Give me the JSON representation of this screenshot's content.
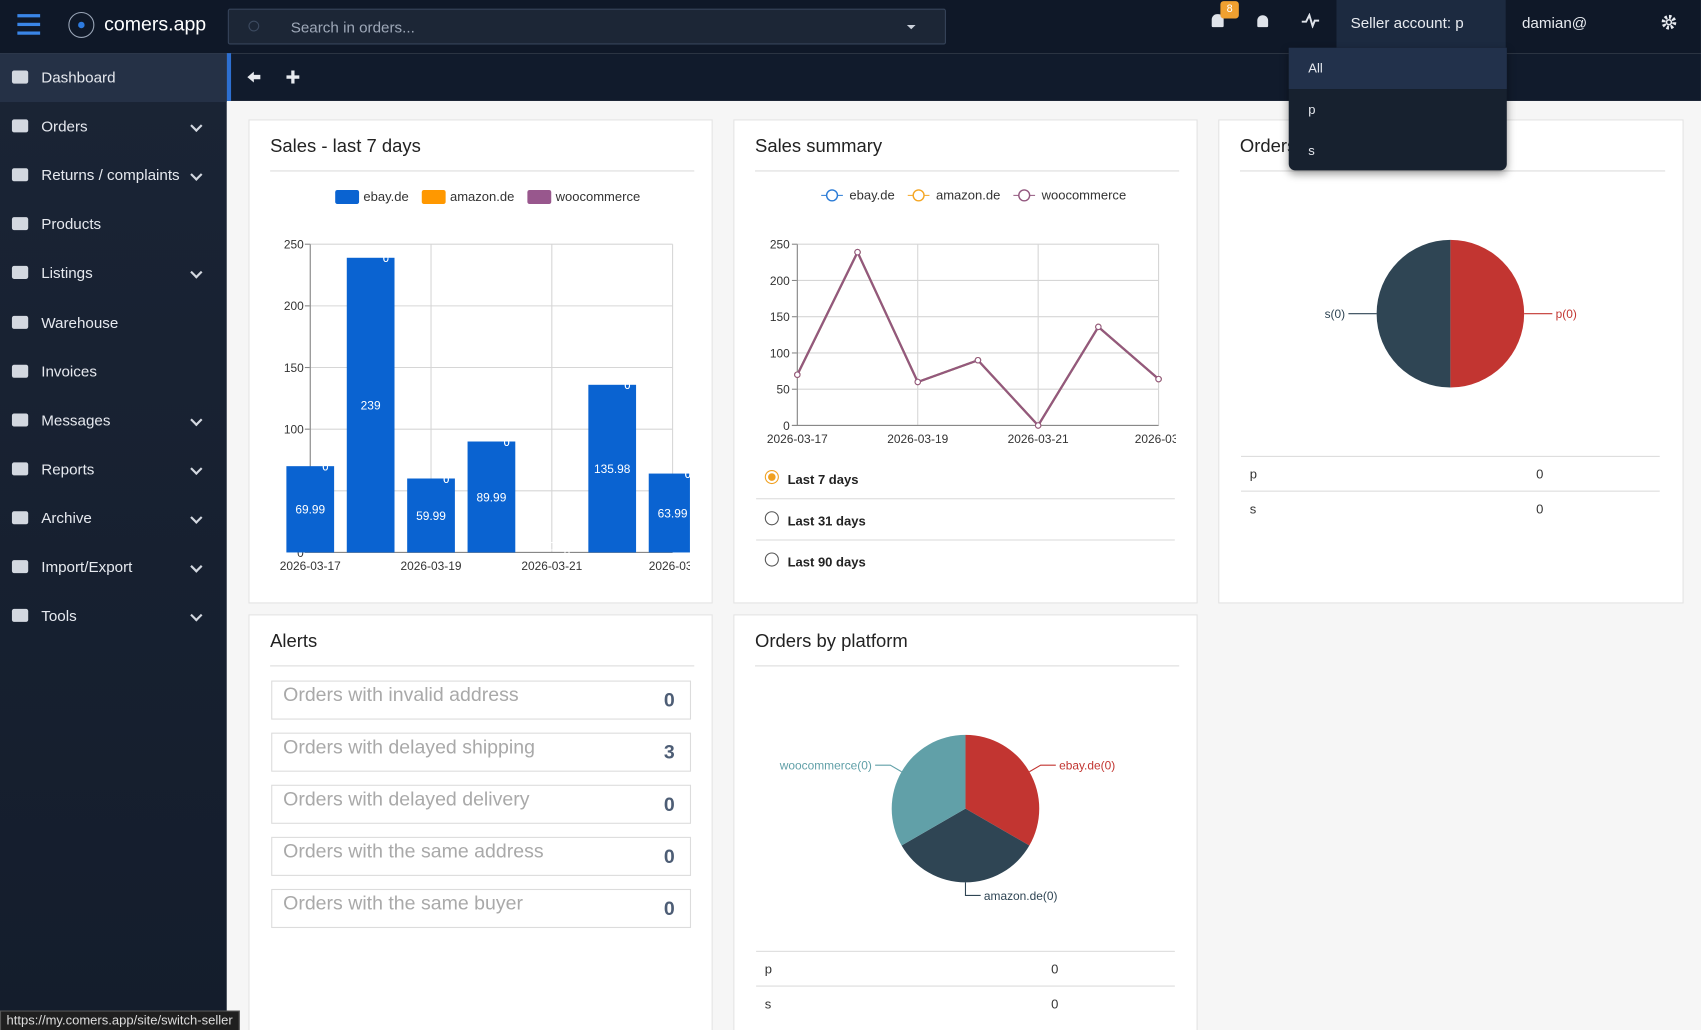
{
  "brand": "comers.app",
  "search_placeholder": "Search in orders...",
  "notification_badge": "8",
  "seller_account": "Seller account: p",
  "user": "damian@",
  "seller_menu": [
    "All",
    "p",
    "s"
  ],
  "sidebar": [
    "Dashboard",
    "Orders",
    "Returns / complaints",
    "Products",
    "Listings",
    "Warehouse",
    "Invoices",
    "Messages",
    "Reports",
    "Archive",
    "Import/Export",
    "Tools"
  ],
  "status_url": "https://my.comers.app/site/switch-seller",
  "sales_summary_periods": [
    "Last 7 days",
    "Last 31 days",
    "Last 90 days"
  ],
  "seller_table": [
    [
      "p",
      0
    ],
    [
      "s",
      0
    ]
  ],
  "platform_table": [
    [
      "p",
      0
    ],
    [
      "s",
      0
    ]
  ],
  "alerts": {
    "title": "Alerts",
    "items": [
      {
        "label": "Orders with invalid address",
        "count": 0
      },
      {
        "label": "Orders with delayed shipping",
        "count": 3
      },
      {
        "label": "Orders with delayed delivery",
        "count": 0
      },
      {
        "label": "Orders with the same address",
        "count": 0
      },
      {
        "label": "Orders with the same buyer",
        "count": 0
      }
    ]
  },
  "chart_data": [
    {
      "type": "bar",
      "title": "Sales - last 7 days",
      "categories": [
        "2026-03-17",
        null,
        "2026-03-19",
        null,
        "2026-03-21",
        null,
        "2026-03-"
      ],
      "series": [
        {
          "name": "ebay.de",
          "color": "#0a63d1",
          "values": [
            69.99,
            239,
            59.99,
            89.99,
            0,
            135.98,
            63.99
          ]
        },
        {
          "name": "amazon.de",
          "color": "#ff9800",
          "values": [
            0,
            0,
            0,
            0,
            0,
            0,
            0
          ]
        },
        {
          "name": "woocommerce",
          "color": "#98578d",
          "values": [
            0,
            0,
            0,
            0,
            0,
            0,
            0
          ]
        }
      ],
      "stacked": true,
      "ylim": [
        0,
        250
      ],
      "yticks": [
        0,
        50,
        100,
        150,
        200,
        250
      ],
      "grid": true
    },
    {
      "type": "line",
      "title": "Sales summary",
      "categories": [
        "2026-03-17",
        null,
        "2026-03-19",
        null,
        "2026-03-21",
        null,
        "2026-03-"
      ],
      "series": [
        {
          "name": "ebay.de",
          "color": "#2a7bd6",
          "values": [
            69.99,
            239,
            59.99,
            89.99,
            0,
            135.98,
            63.99
          ]
        },
        {
          "name": "amazon.de",
          "color": "#f5a623",
          "values": [
            69.99,
            239,
            59.99,
            89.99,
            0,
            135.98,
            63.99
          ]
        },
        {
          "name": "woocommerce",
          "color": "#93587f",
          "values": [
            69.99,
            239,
            59.99,
            89.99,
            0,
            135.98,
            63.99
          ]
        }
      ],
      "ylim": [
        0,
        250
      ],
      "yticks": [
        0,
        50,
        100,
        150,
        200,
        250
      ],
      "grid": true
    },
    {
      "type": "pie",
      "title": "Orders by seller account",
      "categories": [
        "p",
        "s"
      ],
      "values": [
        0,
        0
      ],
      "value_labels": [
        "p(0)",
        "s(0)"
      ],
      "colors": [
        "#c23531",
        "#2f4554"
      ]
    },
    {
      "type": "pie",
      "title": "Orders by platform",
      "categories": [
        "ebay.de",
        "amazon.de",
        "woocommerce"
      ],
      "values": [
        0,
        0,
        0
      ],
      "value_labels": [
        "ebay.de(0)",
        "amazon.de(0)",
        "woocommerce(0)"
      ],
      "colors": [
        "#c23531",
        "#2f4554",
        "#61a0a8"
      ]
    }
  ]
}
